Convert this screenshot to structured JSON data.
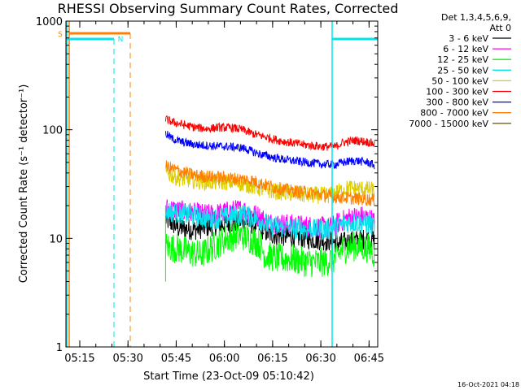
{
  "chart_data": {
    "type": "line",
    "title": "RHESSI Observing Summary Count Rates, Corrected",
    "xlabel": "Start Time (23-Oct-09 05:10:42)",
    "ylabel": "Corrected Count Rate (s⁻¹ detector⁻¹)",
    "y_scale": "log",
    "ylim": [
      1,
      1000
    ],
    "x_tick_labels": [
      "05:15",
      "05:30",
      "05:45",
      "06:00",
      "06:15",
      "06:30",
      "06:45"
    ],
    "y_tick_labels": [
      "1",
      "10",
      "100",
      "1000"
    ],
    "legend_header": [
      "Det 1,3,4,5,6,9,",
      "Att 0"
    ],
    "legend_position": "right",
    "timestamp": "16-Oct-2021 04:18",
    "annotations": [
      {
        "label": "S",
        "color": "#ff8000"
      },
      {
        "label": "N",
        "color": "#00e5ee"
      }
    ],
    "series": [
      {
        "name": "3 - 6 keV",
        "color": "#000000",
        "anchors": [
          [
            31,
            15
          ],
          [
            35,
            12.5
          ],
          [
            40,
            12
          ],
          [
            45,
            13
          ],
          [
            52,
            14
          ],
          [
            55,
            14.5
          ],
          [
            60,
            13
          ],
          [
            63,
            11
          ],
          [
            68,
            10.5
          ],
          [
            75,
            10
          ],
          [
            82,
            9.5
          ],
          [
            85,
            9
          ],
          [
            90,
            9.5
          ],
          [
            95,
            10
          ],
          [
            96,
            9.5
          ]
        ]
      },
      {
        "name": "6 - 12 keV",
        "color": "#ff00ff",
        "anchors": [
          [
            31,
            19
          ],
          [
            35,
            18
          ],
          [
            40,
            17
          ],
          [
            45,
            16.5
          ],
          [
            52,
            18
          ],
          [
            55,
            18.5
          ],
          [
            60,
            16
          ],
          [
            63,
            14
          ],
          [
            68,
            13.5
          ],
          [
            75,
            13
          ],
          [
            82,
            12.5
          ],
          [
            85,
            14
          ],
          [
            88,
            15.5
          ],
          [
            92,
            16
          ],
          [
            95,
            15
          ],
          [
            96,
            14
          ]
        ]
      },
      {
        "name": "12 - 25 keV",
        "color": "#00ff00",
        "anchors": [
          [
            31,
            8.5
          ],
          [
            35,
            8
          ],
          [
            38,
            7.5
          ],
          [
            42,
            7
          ],
          [
            46,
            8.5
          ],
          [
            50,
            10
          ],
          [
            54,
            10.8
          ],
          [
            57,
            10
          ],
          [
            60,
            9
          ],
          [
            62,
            7
          ],
          [
            66,
            6.5
          ],
          [
            70,
            6.5
          ],
          [
            75,
            6
          ],
          [
            80,
            6
          ],
          [
            84,
            6.5
          ],
          [
            86,
            8
          ],
          [
            90,
            8.5
          ],
          [
            95,
            8
          ],
          [
            96,
            7
          ]
        ]
      },
      {
        "name": "25 - 50 keV",
        "color": "#00e5ee",
        "anchors": [
          [
            31,
            18
          ],
          [
            35,
            17
          ],
          [
            40,
            16
          ],
          [
            45,
            15
          ],
          [
            52,
            16
          ],
          [
            55,
            16.5
          ],
          [
            60,
            15
          ],
          [
            63,
            13
          ],
          [
            68,
            12.5
          ],
          [
            75,
            12
          ],
          [
            82,
            12
          ],
          [
            85,
            13
          ],
          [
            88,
            14
          ],
          [
            92,
            14
          ],
          [
            95,
            13.5
          ],
          [
            96,
            12.5
          ]
        ]
      },
      {
        "name": "50 - 100 keV",
        "color": "#ddcc00",
        "anchors": [
          [
            31,
            40
          ],
          [
            35,
            36
          ],
          [
            40,
            34
          ],
          [
            45,
            33
          ],
          [
            52,
            33
          ],
          [
            55,
            32
          ],
          [
            60,
            29
          ],
          [
            65,
            27
          ],
          [
            70,
            26
          ],
          [
            75,
            25
          ],
          [
            82,
            25
          ],
          [
            85,
            27
          ],
          [
            88,
            29
          ],
          [
            92,
            28.5
          ],
          [
            95,
            28
          ],
          [
            96,
            27
          ]
        ]
      },
      {
        "name": "100 - 300 keV",
        "color": "#ff0000",
        "anchors": [
          [
            31,
            125
          ],
          [
            33,
            118
          ],
          [
            36,
            112
          ],
          [
            40,
            105
          ],
          [
            44,
            102
          ],
          [
            48,
            105
          ],
          [
            52,
            104
          ],
          [
            55,
            100
          ],
          [
            58,
            92
          ],
          [
            62,
            86
          ],
          [
            66,
            80
          ],
          [
            70,
            76
          ],
          [
            75,
            72
          ],
          [
            80,
            70
          ],
          [
            84,
            70
          ],
          [
            86,
            76
          ],
          [
            90,
            80
          ],
          [
            94,
            77
          ],
          [
            96,
            74
          ]
        ]
      },
      {
        "name": "300 - 800 keV",
        "color": "#0000ff",
        "anchors": [
          [
            31,
            92
          ],
          [
            33,
            83
          ],
          [
            36,
            77
          ],
          [
            40,
            73
          ],
          [
            45,
            71
          ],
          [
            50,
            70
          ],
          [
            55,
            68
          ],
          [
            60,
            60
          ],
          [
            65,
            55
          ],
          [
            70,
            52
          ],
          [
            75,
            50
          ],
          [
            80,
            48
          ],
          [
            84,
            48
          ],
          [
            86,
            50
          ],
          [
            90,
            52
          ],
          [
            94,
            50
          ],
          [
            96,
            47
          ]
        ]
      },
      {
        "name": "800 - 7000 keV",
        "color": "#ff8000",
        "anchors": [
          [
            31,
            46
          ],
          [
            35,
            42
          ],
          [
            40,
            38
          ],
          [
            45,
            37
          ],
          [
            50,
            36
          ],
          [
            55,
            35
          ],
          [
            58,
            34
          ],
          [
            62,
            31
          ],
          [
            66,
            29
          ],
          [
            70,
            27.5
          ],
          [
            75,
            26.5
          ],
          [
            80,
            25
          ],
          [
            84,
            24
          ],
          [
            88,
            23.5
          ],
          [
            92,
            23
          ],
          [
            96,
            22.5
          ]
        ]
      },
      {
        "name": "7000 - 15000 keV",
        "color": "#806000",
        "anchors": []
      }
    ]
  }
}
